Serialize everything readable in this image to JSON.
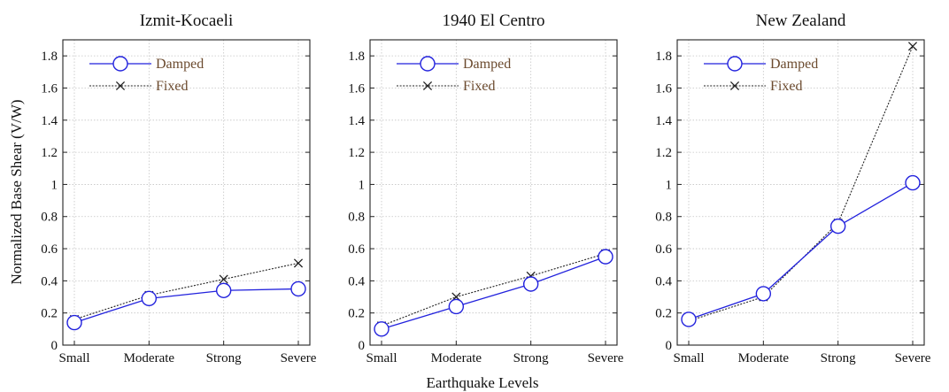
{
  "chart_data": [
    {
      "type": "line",
      "title": "Izmit-Kocaeli",
      "categories": [
        "Small",
        "Moderate",
        "Strong",
        "Severe"
      ],
      "ylim": [
        0,
        1.9
      ],
      "yticks": [
        "0",
        "0.2",
        "0.4",
        "0.6",
        "0.8",
        "1",
        "1.2",
        "1.4",
        "1.6",
        "1.8"
      ],
      "grid": true,
      "legend_position": "top-left",
      "series": [
        {
          "name": "Damped",
          "values": [
            0.14,
            0.29,
            0.34,
            0.35
          ],
          "color": "#2222dd",
          "marker": "circle",
          "dash": "solid"
        },
        {
          "name": "Fixed",
          "values": [
            0.16,
            0.31,
            0.41,
            0.51
          ],
          "color": "#222222",
          "marker": "x",
          "dash": "dotted"
        }
      ]
    },
    {
      "type": "line",
      "title": "1940 El Centro",
      "categories": [
        "Small",
        "Moderate",
        "Strong",
        "Severe"
      ],
      "ylim": [
        0,
        1.9
      ],
      "yticks": [
        "0",
        "0.2",
        "0.4",
        "0.6",
        "0.8",
        "1",
        "1.2",
        "1.4",
        "1.6",
        "1.8"
      ],
      "grid": true,
      "legend_position": "top-left",
      "series": [
        {
          "name": "Damped",
          "values": [
            0.1,
            0.24,
            0.38,
            0.55
          ],
          "color": "#2222dd",
          "marker": "circle",
          "dash": "solid"
        },
        {
          "name": "Fixed",
          "values": [
            0.12,
            0.3,
            0.43,
            0.57
          ],
          "color": "#222222",
          "marker": "x",
          "dash": "dotted"
        }
      ]
    },
    {
      "type": "line",
      "title": "New Zealand",
      "categories": [
        "Small",
        "Moderate",
        "Strong",
        "Severe"
      ],
      "ylim": [
        0,
        1.9
      ],
      "yticks": [
        "0",
        "0.2",
        "0.4",
        "0.6",
        "0.8",
        "1",
        "1.2",
        "1.4",
        "1.6",
        "1.8"
      ],
      "grid": true,
      "legend_position": "top-left",
      "series": [
        {
          "name": "Damped",
          "values": [
            0.16,
            0.32,
            0.74,
            1.01
          ],
          "color": "#2222dd",
          "marker": "circle",
          "dash": "solid"
        },
        {
          "name": "Fixed",
          "values": [
            0.15,
            0.3,
            0.76,
            1.86
          ],
          "color": "#222222",
          "marker": "x",
          "dash": "dotted"
        }
      ]
    }
  ],
  "ylabel": "Normalized Base Shear (V/W)",
  "xlabel": "Earthquake Levels"
}
